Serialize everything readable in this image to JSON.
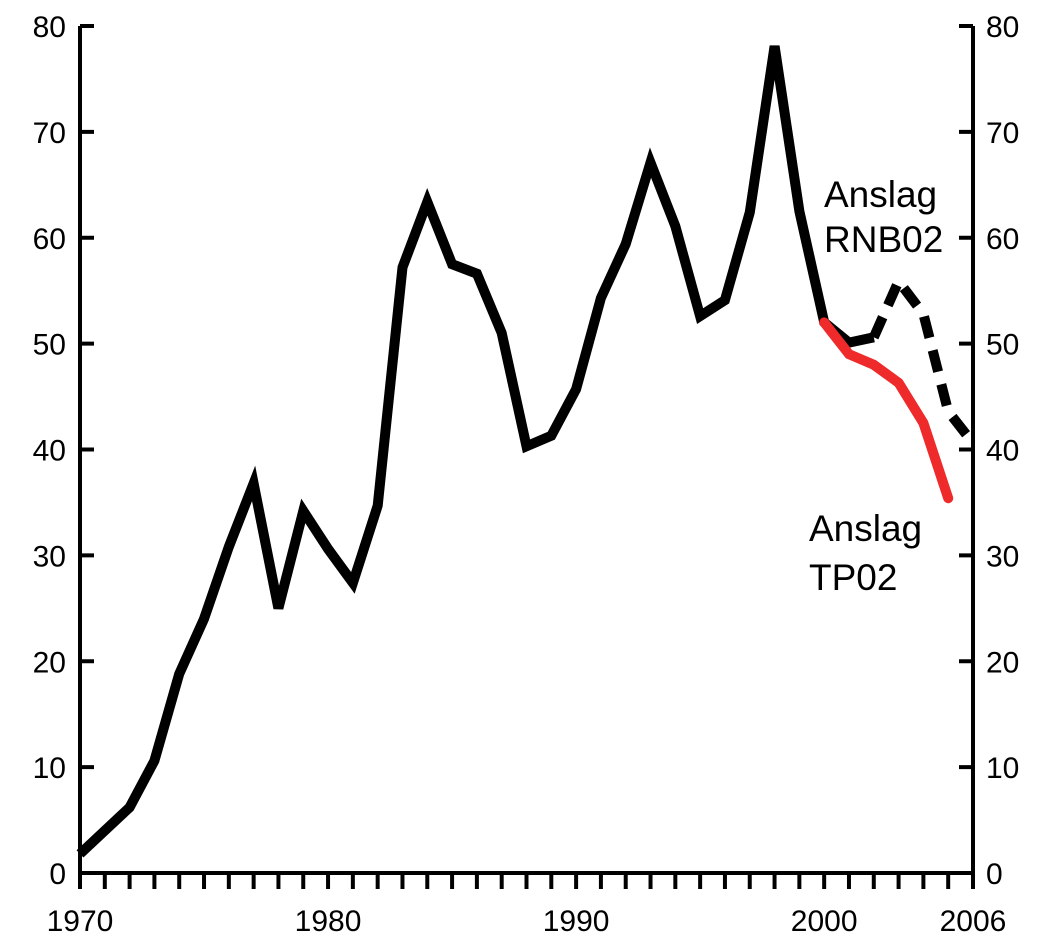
{
  "chart_data": {
    "type": "line",
    "title": "",
    "xlabel": "",
    "ylabel": "",
    "xlim": [
      1970,
      2006
    ],
    "ylim": [
      0,
      80
    ],
    "grid": false,
    "x_ticks_major": [
      1970,
      1980,
      1990,
      2000,
      2006
    ],
    "x_ticks_minor_every": 1,
    "y_ticks": [
      0,
      10,
      20,
      30,
      40,
      50,
      60,
      70,
      80
    ],
    "y_axis_right_mirrored": true,
    "series": [
      {
        "style": "solid",
        "color": "#000000",
        "x": [
          1970,
          1971,
          1972,
          1973,
          1974,
          1975,
          1976,
          1977,
          1978,
          1979,
          1980,
          1981,
          1982,
          1983,
          1984,
          1985,
          1986,
          1987,
          1988,
          1989,
          1990,
          1991,
          1992,
          1993,
          1994,
          1995,
          1996,
          1997,
          1998,
          1999,
          2000,
          2001,
          2002
        ],
        "y": [
          1.8,
          4.0,
          6.2,
          10.6,
          18.8,
          24.0,
          30.8,
          36.8,
          25.0,
          34.2,
          30.6,
          27.4,
          34.7,
          57.2,
          63.4,
          57.5,
          56.6,
          51.0,
          40.3,
          41.3,
          45.7,
          54.3,
          59.4,
          67.1,
          61.1,
          52.6,
          54.1,
          62.4,
          78.1,
          62.5,
          52.0,
          50.1,
          50.6
        ]
      },
      {
        "style": "dashed",
        "color": "#000000",
        "x": [
          2002,
          2003,
          2004,
          2005,
          2006
        ],
        "y": [
          50.6,
          55.9,
          52.8,
          43.6,
          40.6
        ]
      },
      {
        "style": "solid",
        "color": "#ee2a2a",
        "x": [
          2000,
          2001,
          2002,
          2003,
          2004,
          2005
        ],
        "y": [
          52.0,
          49.0,
          48.0,
          46.3,
          42.5,
          35.4
        ]
      }
    ],
    "annotations": [
      {
        "lines": [
          "Anslag",
          "RNB02"
        ],
        "color": "#000000"
      },
      {
        "lines": [
          "Anslag",
          "TP02"
        ],
        "color": "#000000"
      }
    ]
  }
}
